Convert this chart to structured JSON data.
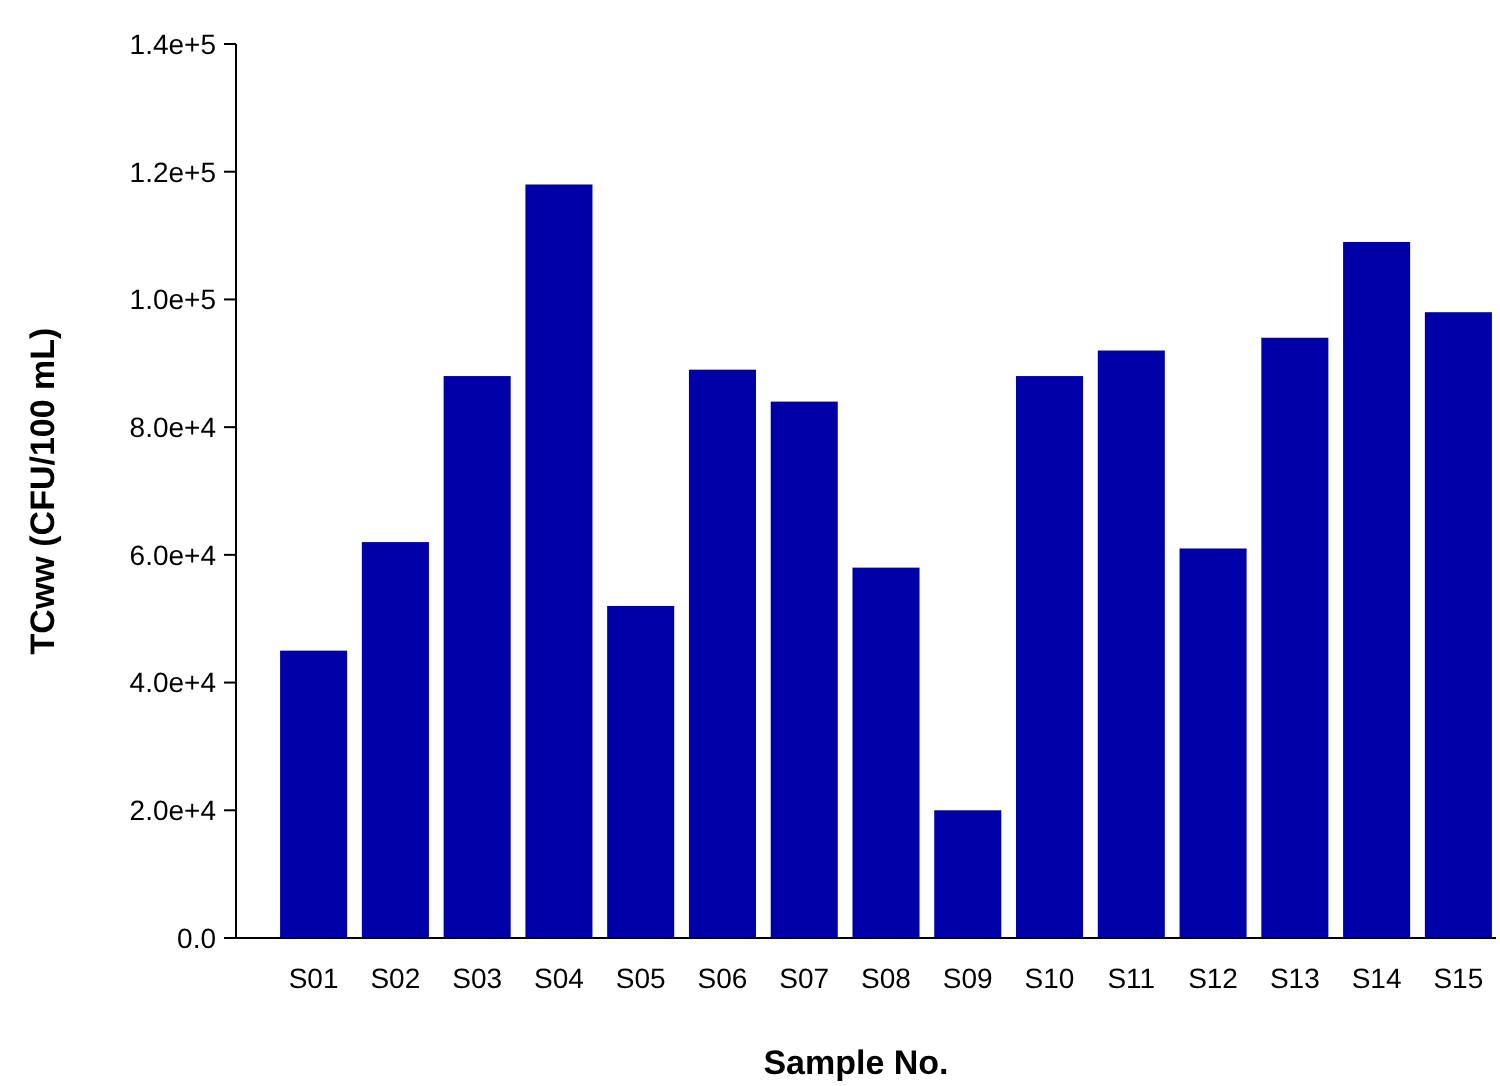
{
  "chart_data": {
    "type": "bar",
    "xlabel": "Sample No.",
    "ylabel": "TCww (CFU/100 mL)",
    "categories": [
      "S01",
      "S02",
      "S03",
      "S04",
      "S05",
      "S06",
      "S07",
      "S08",
      "S09",
      "S10",
      "S11",
      "S12",
      "S13",
      "S14",
      "S15"
    ],
    "values": [
      45000,
      62000,
      88000,
      118000,
      52000,
      89000,
      84000,
      58000,
      20000,
      88000,
      92000,
      61000,
      94000,
      109000,
      98000
    ],
    "color": "#0000a8",
    "ylim": [
      0,
      140000
    ],
    "yticks": [
      {
        "value": 0,
        "label": "0.0"
      },
      {
        "value": 20000,
        "label": "2.0e+4"
      },
      {
        "value": 40000,
        "label": "4.0e+4"
      },
      {
        "value": 60000,
        "label": "6.0e+4"
      },
      {
        "value": 80000,
        "label": "8.0e+4"
      },
      {
        "value": 100000,
        "label": "1.0e+5"
      },
      {
        "value": 120000,
        "label": "1.2e+5"
      },
      {
        "value": 140000,
        "label": "1.4e+5"
      }
    ],
    "grid": false
  }
}
